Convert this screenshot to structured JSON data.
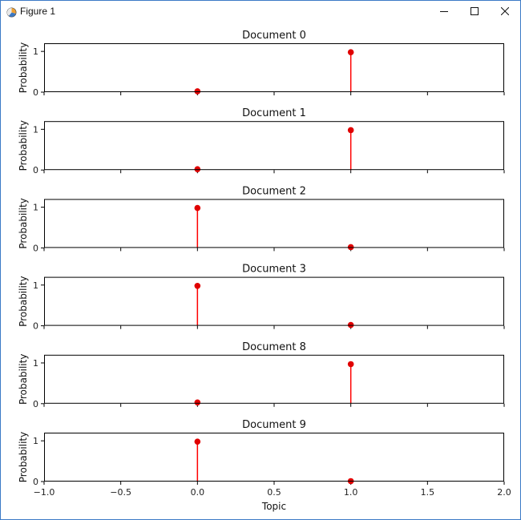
{
  "window": {
    "title": "Figure 1",
    "app_icon": "figure-app-icon",
    "controls": {
      "minimize_icon": "minimize-icon",
      "maximize_icon": "maximize-icon",
      "close_icon": "close-icon"
    }
  },
  "chart_data": {
    "type": "stem",
    "xlabel": "Topic",
    "xlim": [
      -1.0,
      2.0
    ],
    "xticks": [
      -1.0,
      -0.5,
      0.0,
      0.5,
      1.0,
      1.5,
      2.0
    ],
    "xtick_labels": [
      "−1.0",
      "−0.5",
      "0.0",
      "0.5",
      "1.0",
      "1.5",
      "2.0"
    ],
    "ylabel": "Probability",
    "ylim": [
      0,
      1.2
    ],
    "yticks": [
      0,
      1
    ],
    "ytick_labels": [
      "0",
      "1"
    ],
    "grid": false,
    "colors": {
      "stem": "#ff0000",
      "marker": "#e00000",
      "axis": "#000000"
    },
    "subplots": [
      {
        "title": "Document 0",
        "x": [
          0,
          1
        ],
        "y": [
          0.02,
          0.98
        ]
      },
      {
        "title": "Document 1",
        "x": [
          0,
          1
        ],
        "y": [
          0.02,
          0.98
        ]
      },
      {
        "title": "Document 2",
        "x": [
          0,
          1
        ],
        "y": [
          0.98,
          0.02
        ]
      },
      {
        "title": "Document 3",
        "x": [
          0,
          1
        ],
        "y": [
          0.98,
          0.02
        ]
      },
      {
        "title": "Document 8",
        "x": [
          0,
          1
        ],
        "y": [
          0.03,
          0.97
        ]
      },
      {
        "title": "Document 9",
        "x": [
          0,
          1
        ],
        "y": [
          0.98,
          0.01
        ]
      }
    ]
  }
}
